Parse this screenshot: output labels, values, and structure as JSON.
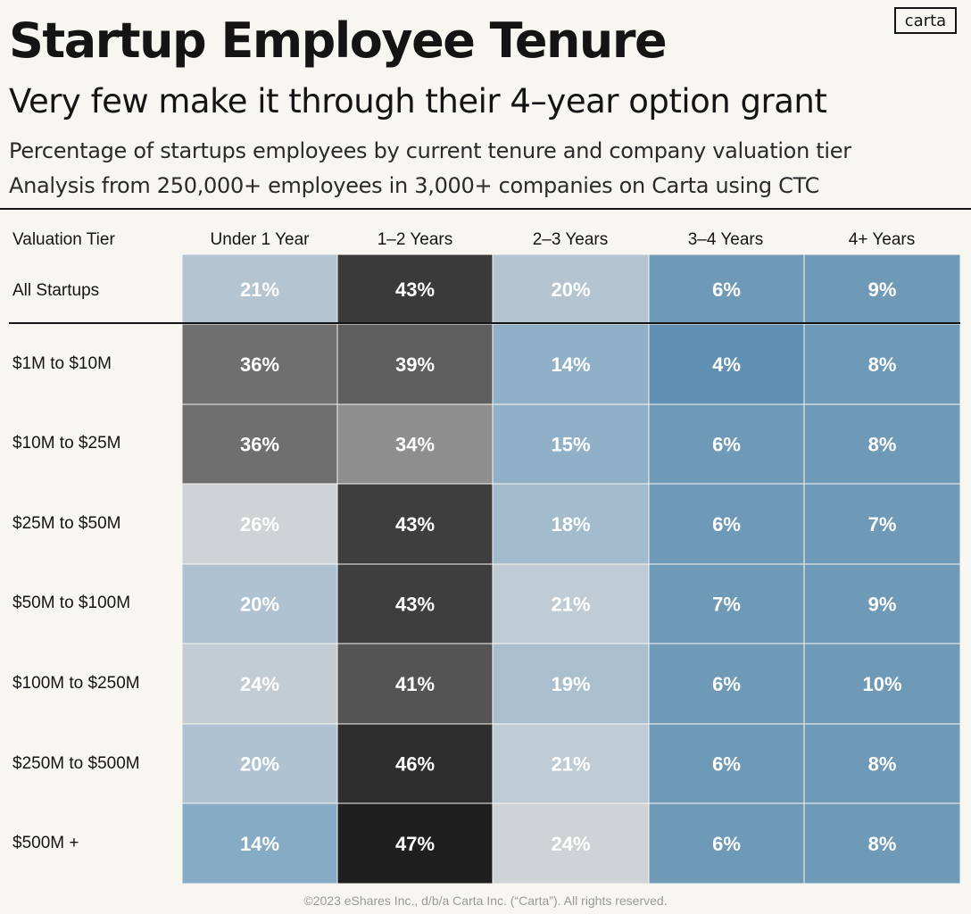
{
  "logo": "carta",
  "header": {
    "title": "Startup Employee Tenure",
    "subtitle": "Very few make it through their 4–year option grant",
    "description_line1": "Percentage of startups employees by current tenure and company valuation tier",
    "description_line2": "Analysis from 250,000+ employees in 3,000+ companies on Carta using CTC"
  },
  "chart_data": {
    "type": "heatmap",
    "row_header": "Valuation Tier",
    "columns": [
      "Under 1 Year",
      "1–2 Years",
      "2–3 Years",
      "3–4 Years",
      "4+ Years"
    ],
    "rows": [
      "All Startups",
      "$1M to $10M",
      "$10M to $25M",
      "$25M to $50M",
      "$50M to $100M",
      "$100M to $250M",
      "$250M to $500M",
      "$500M +"
    ],
    "values": [
      [
        21,
        43,
        20,
        6,
        9
      ],
      [
        36,
        39,
        14,
        4,
        8
      ],
      [
        36,
        34,
        15,
        6,
        8
      ],
      [
        26,
        43,
        18,
        6,
        7
      ],
      [
        20,
        43,
        21,
        7,
        9
      ],
      [
        24,
        41,
        19,
        6,
        10
      ],
      [
        20,
        46,
        21,
        6,
        8
      ],
      [
        14,
        47,
        24,
        6,
        8
      ]
    ],
    "value_suffix": "%",
    "colors": [
      [
        "#b4c4d1",
        "#3a3a3a",
        "#b4c4d1",
        "#6e9ab8",
        "#6e9ab8"
      ],
      [
        "#6f6f6f",
        "#5e5e5e",
        "#8fb0c7",
        "#5f8fb2",
        "#6e9ab8"
      ],
      [
        "#6f6f6f",
        "#8e8e8e",
        "#8fb0c7",
        "#6e9ab8",
        "#6e9ab8"
      ],
      [
        "#cfd3d6",
        "#3e3e3e",
        "#a3bccd",
        "#6e9ab8",
        "#6e9ab8"
      ],
      [
        "#aec2d1",
        "#3e3e3e",
        "#c0ccd5",
        "#6e9ab8",
        "#6e9ab8"
      ],
      [
        "#c3ccd3",
        "#545454",
        "#a9bfce",
        "#6e9ab8",
        "#6e9ab8"
      ],
      [
        "#aec2d1",
        "#2e2e2e",
        "#c0ccd5",
        "#6e9ab8",
        "#6e9ab8"
      ],
      [
        "#86abc4",
        "#1f1f1f",
        "#cfd3d6",
        "#6e9ab8",
        "#6e9ab8"
      ]
    ]
  },
  "footer": "©2023 eShares Inc., d/b/a Carta Inc. (“Carta”). All rights reserved."
}
